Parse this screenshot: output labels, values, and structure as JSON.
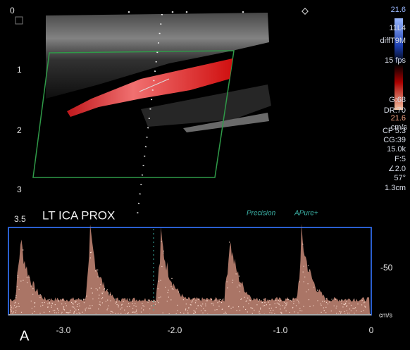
{
  "depth_scale": [
    "0",
    "1",
    "2",
    "3",
    "3.5"
  ],
  "label": "LT ICA PROX",
  "color_scale": {
    "top": "21.6",
    "bottom": "21.6",
    "unit": "cm/s"
  },
  "settings": [
    "11L4",
    "diffT9M",
    "15 fps",
    "G:68",
    "DR:70",
    "CF 5.3",
    "CG:39",
    "15.0k",
    "F:5",
    "∠2.0",
    "57°",
    "1.3cm"
  ],
  "brand": {
    "precision": "Precision",
    "pure": "APure+"
  },
  "spectral": {
    "velocity_label": "-50",
    "unit": "cm/s",
    "time_labels": [
      "-3.0",
      "-2.0",
      "-1.0",
      "0"
    ]
  },
  "panel_letter": "A"
}
